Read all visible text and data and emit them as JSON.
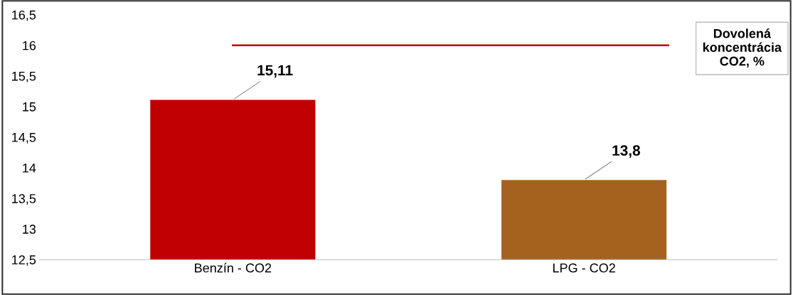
{
  "chart_data": {
    "type": "bar",
    "categories": [
      "Benzín - CO2",
      "LPG - CO2"
    ],
    "values": [
      15.11,
      13.8
    ],
    "colors": [
      "#c00000",
      "#a5621e"
    ],
    "value_labels": [
      "15,11",
      "13,8"
    ],
    "ylim": [
      12.5,
      16.5
    ],
    "yticks": [
      {
        "value": 12.5,
        "label": "12,5"
      },
      13,
      {
        "value": 13.5,
        "label": "13,5"
      },
      14,
      {
        "value": 14.5,
        "label": "14,5"
      },
      15,
      {
        "value": 15.5,
        "label": "15,5"
      },
      16,
      {
        "value": 16.5,
        "label": "16,5"
      }
    ],
    "ref_lines": [
      {
        "axis": "y",
        "value": 16,
        "label": "Dovolená\nkoncentrácia\nCO2, %",
        "color": "#c00000",
        "line_style": "solid"
      }
    ],
    "grid": false,
    "legend": false
  }
}
